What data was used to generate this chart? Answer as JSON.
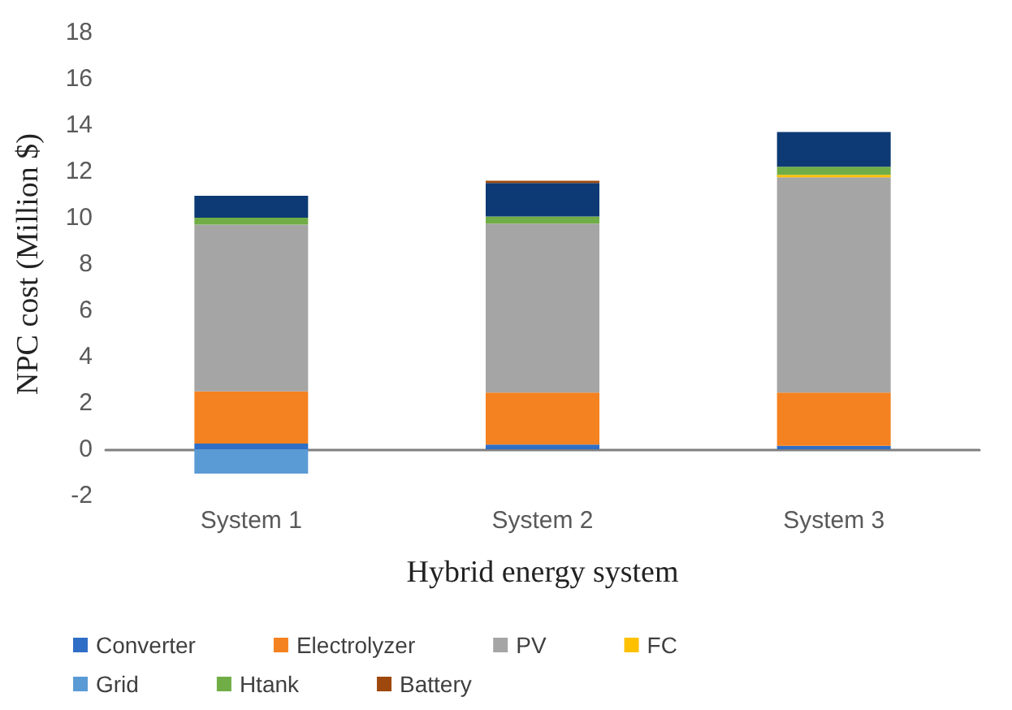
{
  "chart_data": {
    "type": "bar",
    "stacked": true,
    "xlabel": "Hybrid energy system",
    "ylabel": "NPC cost (Million $)",
    "categories": [
      "System 1",
      "System 2",
      "System 3"
    ],
    "series": [
      {
        "name": "Converter",
        "color": "#2f6ec6",
        "values": [
          0.25,
          0.2,
          0.15
        ]
      },
      {
        "name": "Electrolyzer",
        "color": "#f58220",
        "values": [
          2.25,
          2.25,
          2.3
        ]
      },
      {
        "name": "PV",
        "color": "#a5a5a5",
        "values": [
          7.2,
          7.3,
          9.3
        ]
      },
      {
        "name": "FC",
        "color": "#ffc000",
        "values": [
          0,
          0,
          0.1
        ]
      },
      {
        "name": "Grid",
        "color": "#5b9bd5",
        "values": [
          -1.05,
          0,
          0
        ]
      },
      {
        "name": "Htank",
        "color": "#70ad47",
        "values": [
          0.3,
          0.3,
          0.35
        ]
      },
      {
        "color": "#0d3a74",
        "values": [
          0.95,
          1.45,
          1.5
        ]
      },
      {
        "name": "Battery",
        "color": "#9e480e",
        "values": [
          0,
          0.1,
          0
        ]
      }
    ],
    "ylim": [
      -2,
      18
    ],
    "yticks": [
      -2,
      0,
      2,
      4,
      6,
      8,
      10,
      12,
      14,
      16,
      18
    ],
    "grid": false,
    "legend": "bottom"
  }
}
